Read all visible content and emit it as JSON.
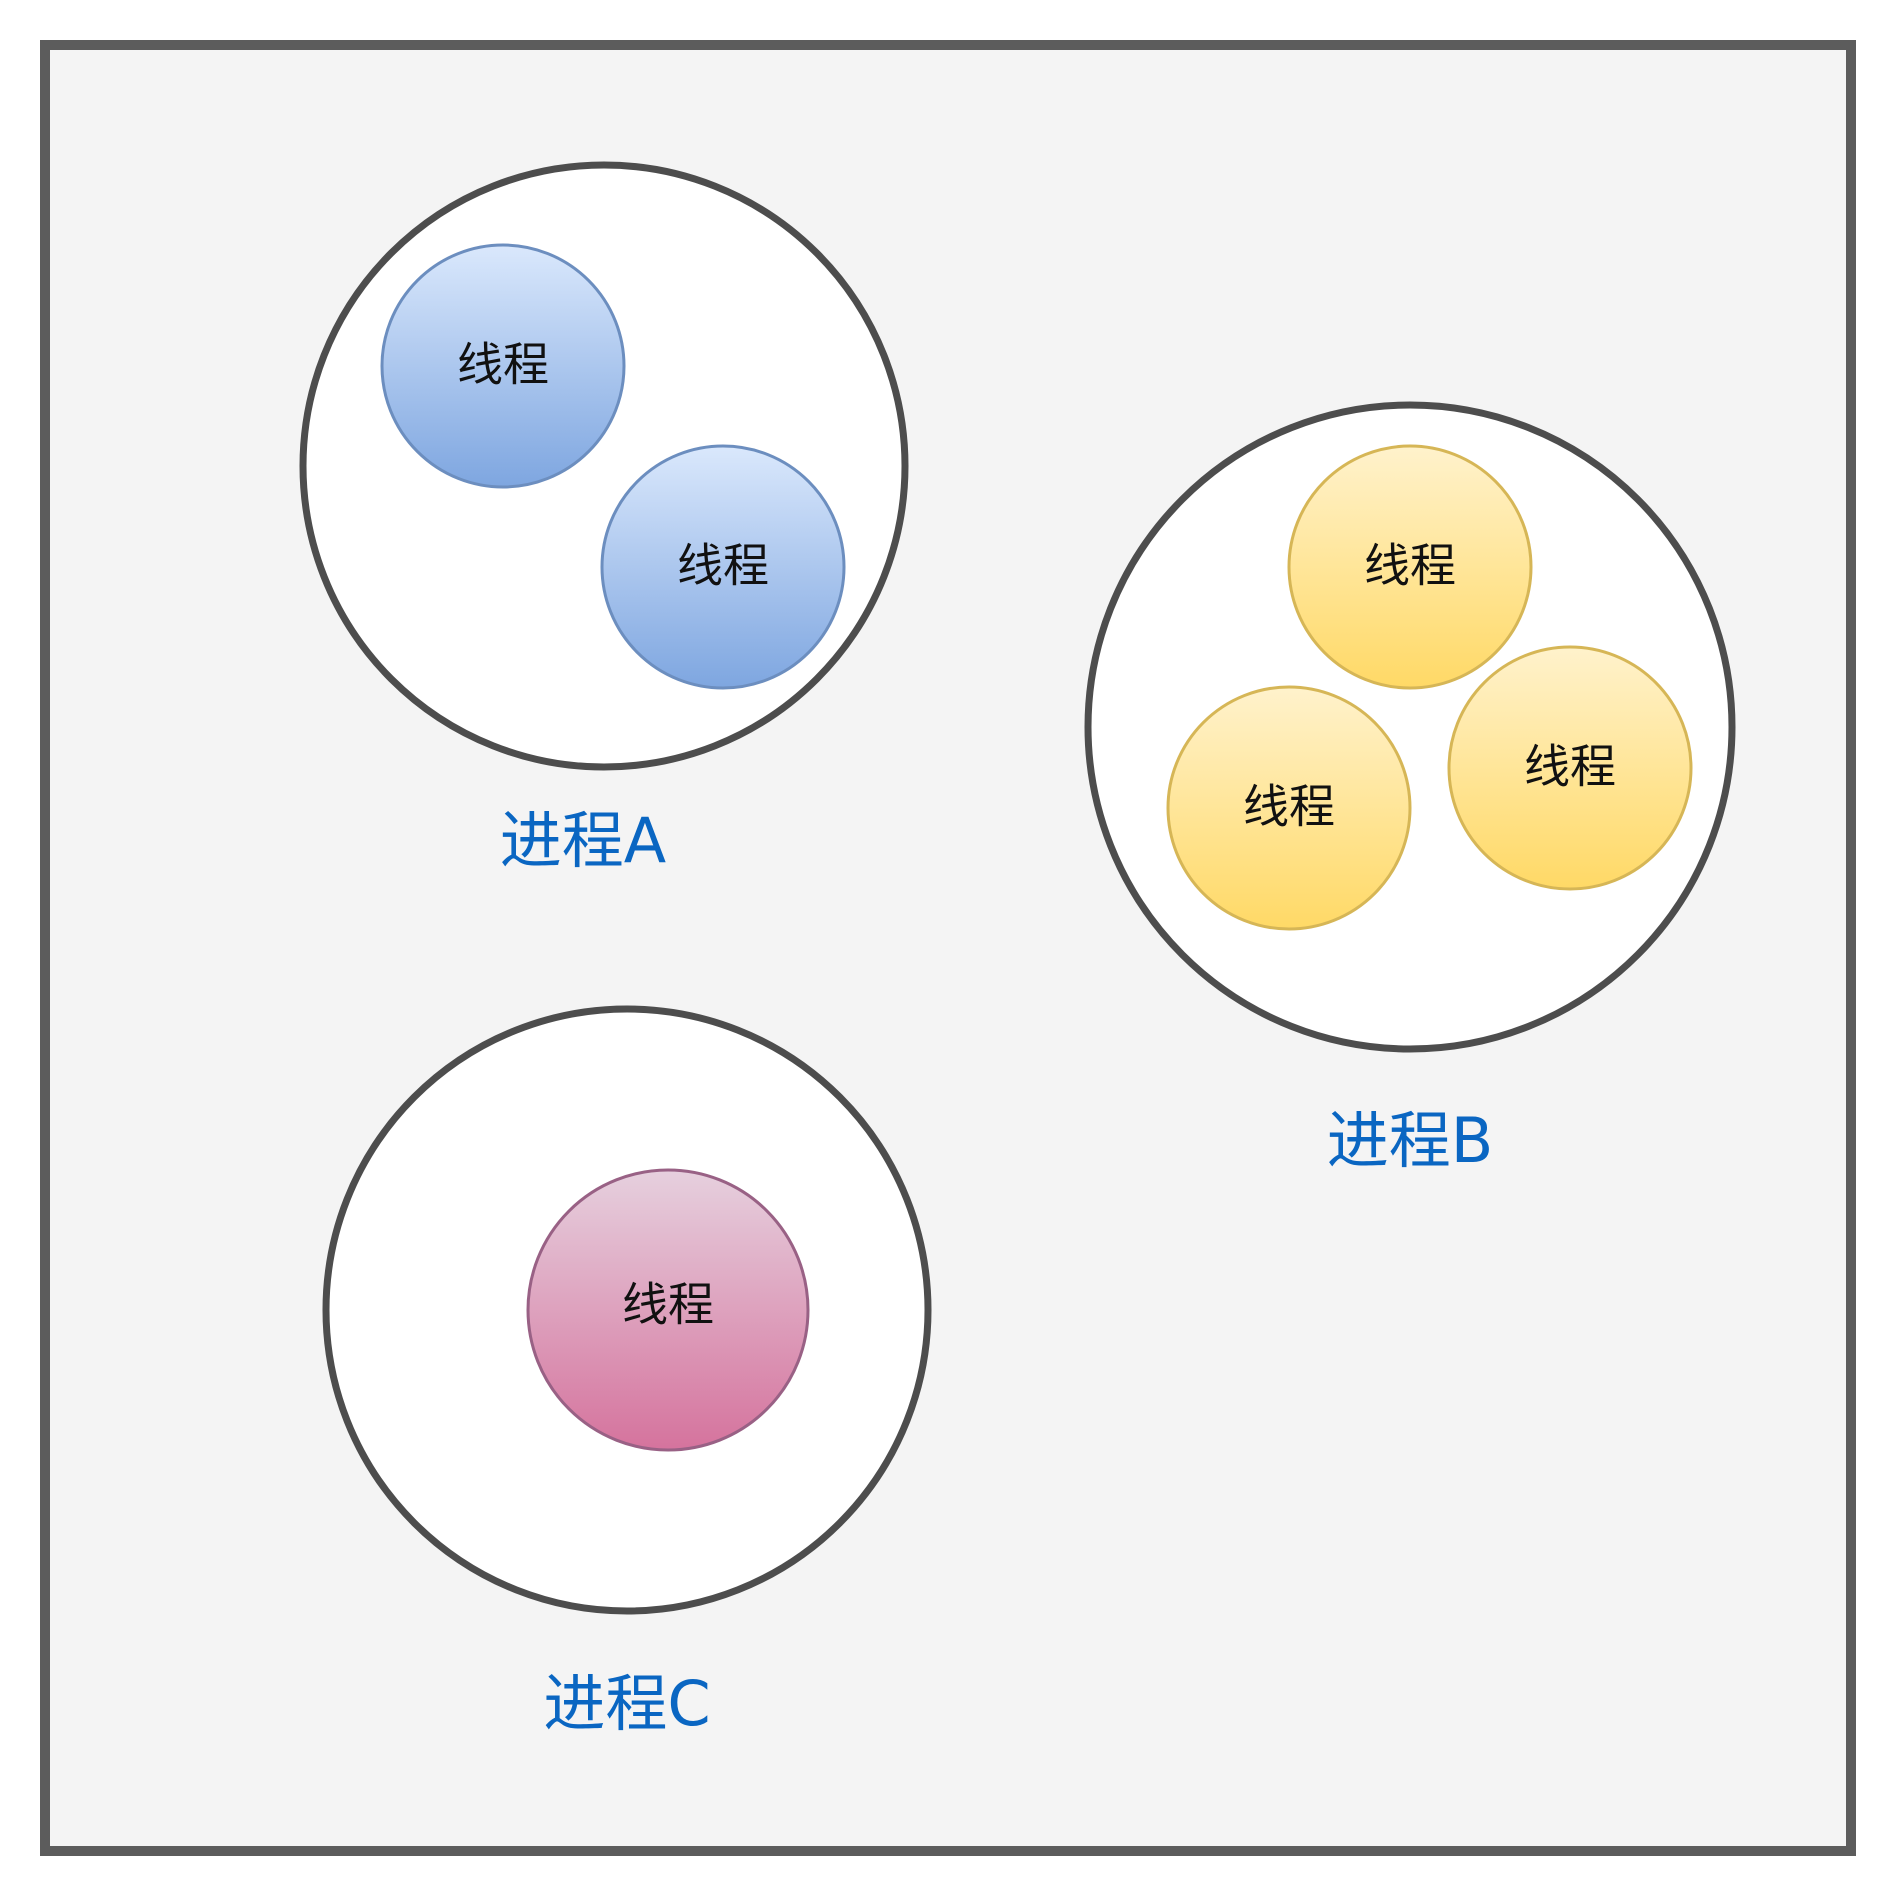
{
  "colors": {
    "background": "#f4f4f4",
    "border": "#5c5c5c",
    "process_fill": "#ffffff",
    "process_stroke": "#4d4d4d",
    "label": "#0a66c2",
    "thread_text": "#111111",
    "blue_top": "#dae8fc",
    "blue_bottom": "#7ea6e0",
    "blue_stroke": "#6c8ebf",
    "yellow_top": "#fff2cc",
    "yellow_bottom": "#ffd966",
    "yellow_stroke": "#d6b656",
    "pink_top": "#e6d0de",
    "pink_bottom": "#d5739d",
    "pink_stroke": "#996185"
  },
  "processes": [
    {
      "label": "进程A",
      "threads": [
        {
          "label": "线程"
        },
        {
          "label": "线程"
        }
      ]
    },
    {
      "label": "进程B",
      "threads": [
        {
          "label": "线程"
        },
        {
          "label": "线程"
        },
        {
          "label": "线程"
        }
      ]
    },
    {
      "label": "进程C",
      "threads": [
        {
          "label": "线程"
        }
      ]
    }
  ]
}
